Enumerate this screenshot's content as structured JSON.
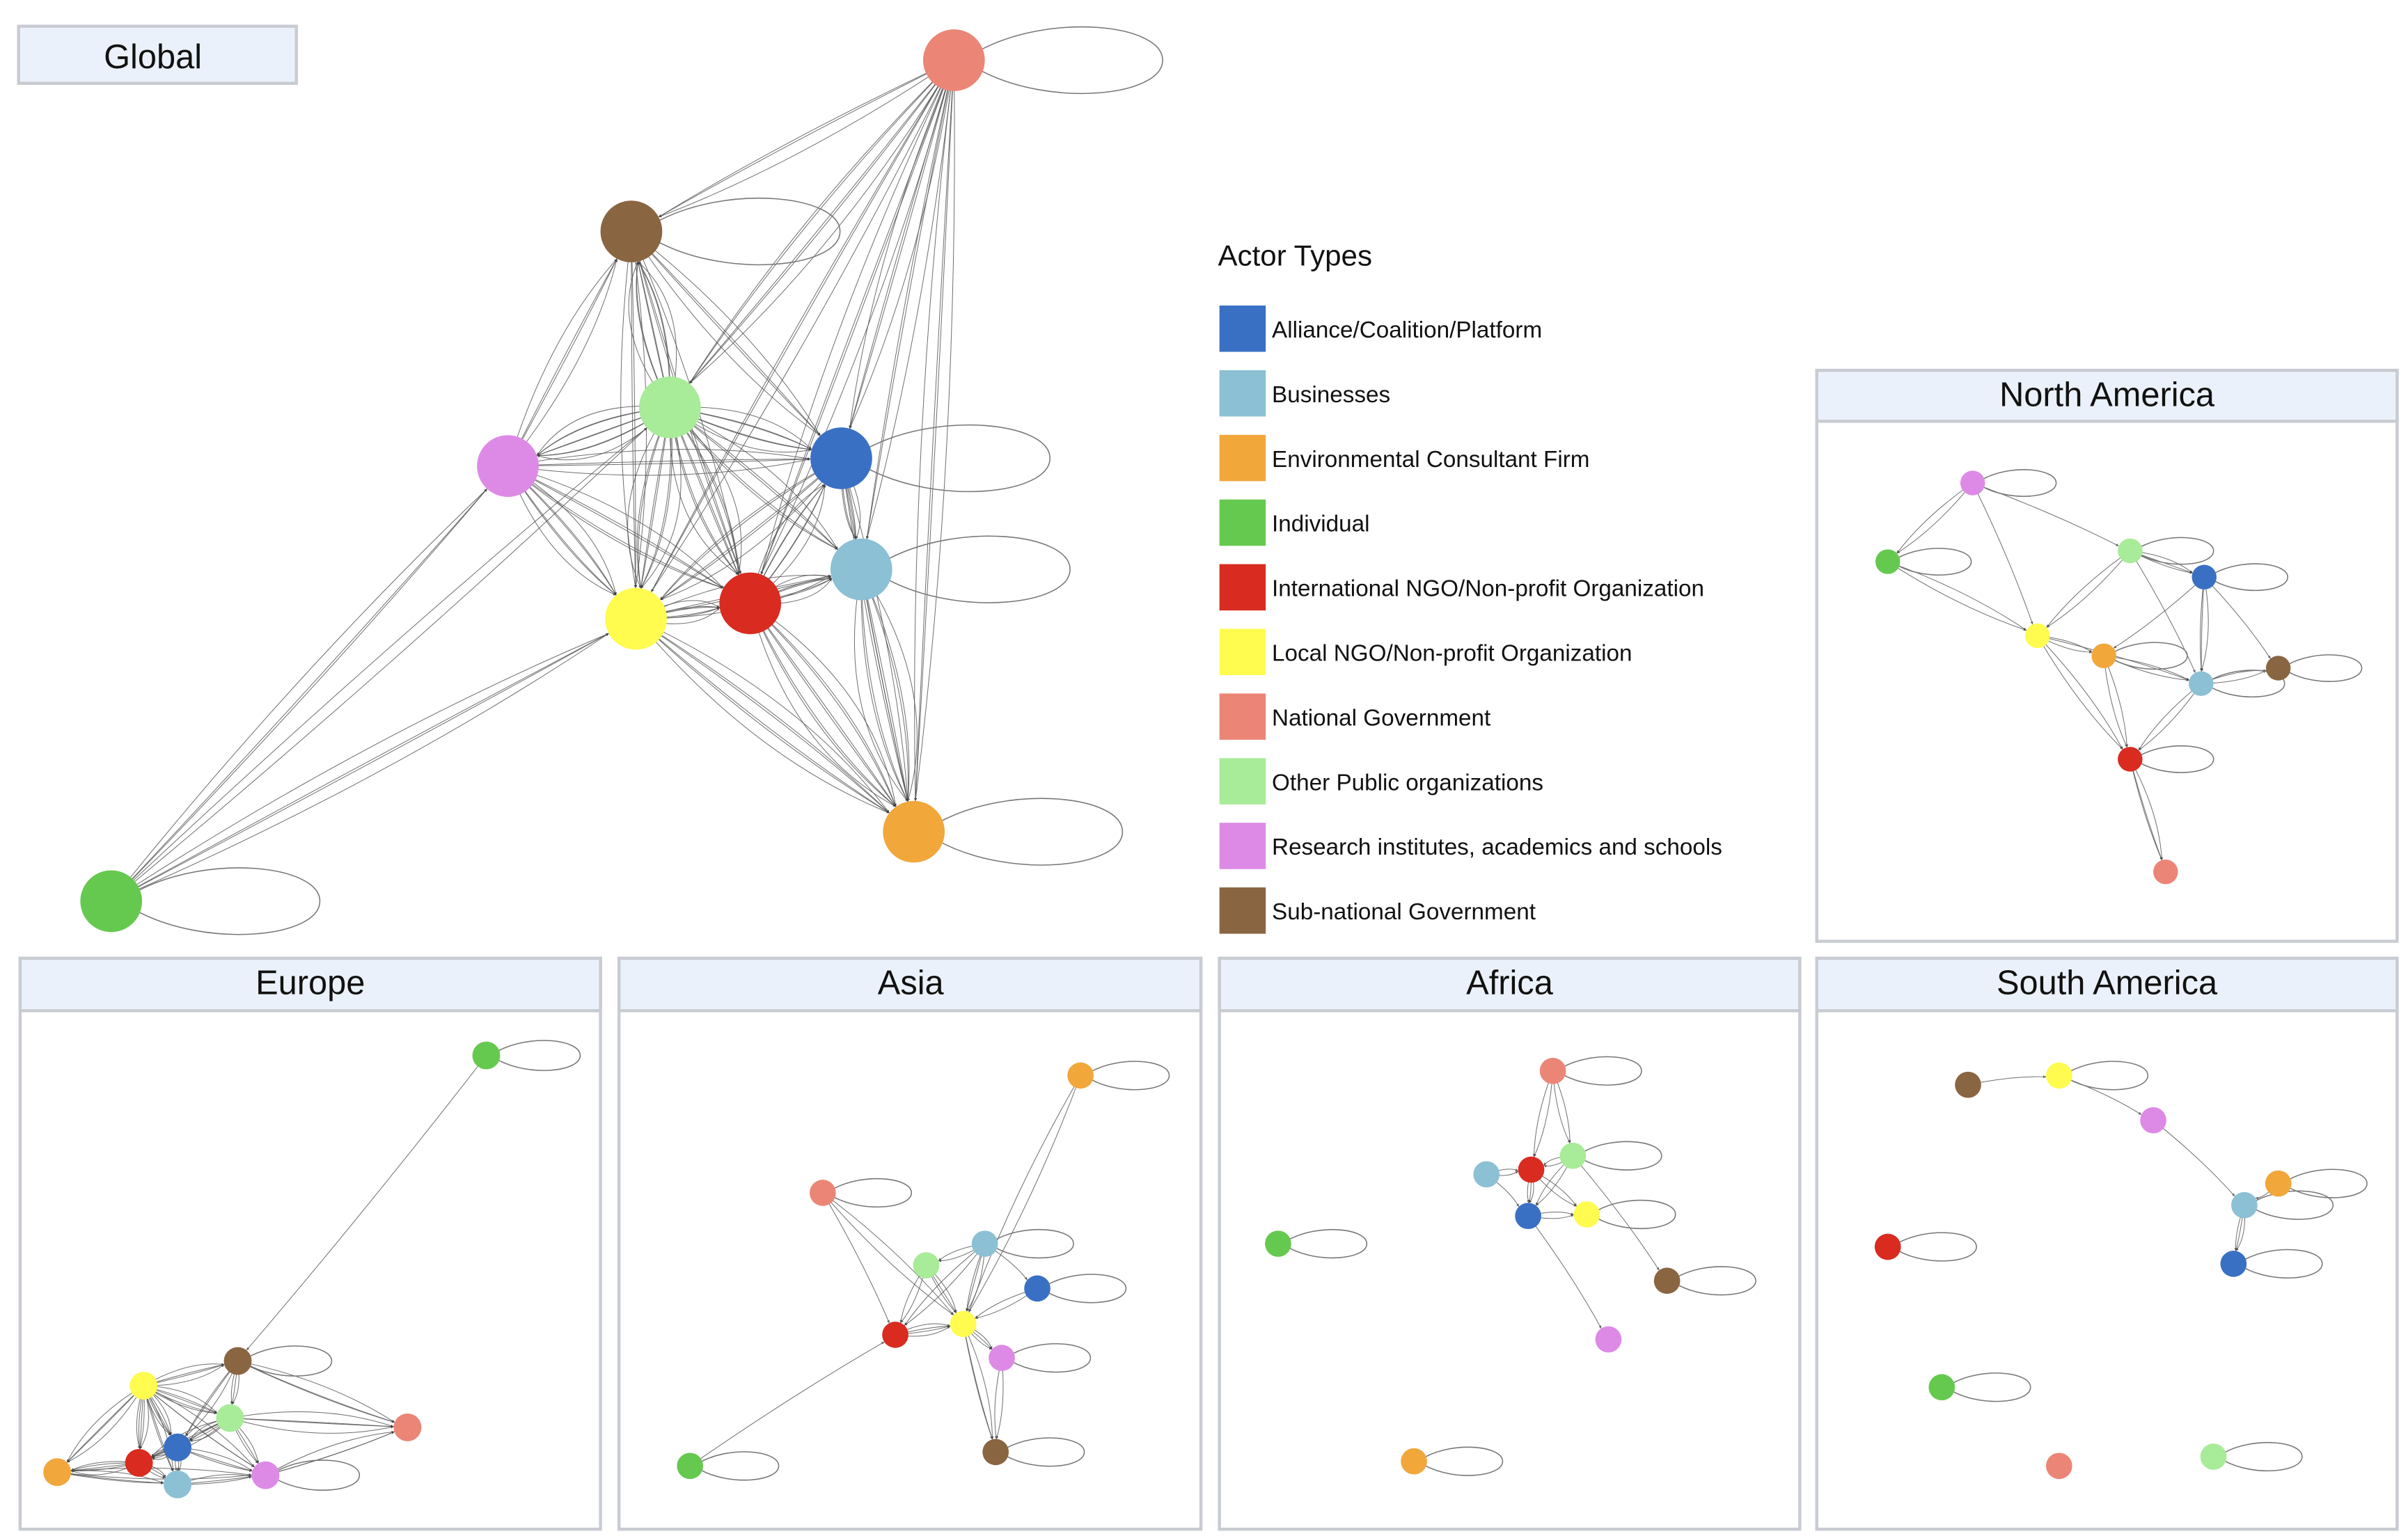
{
  "legend": {
    "title": "Actor Types",
    "items": [
      {
        "key": "alliance",
        "label": "Alliance/Coalition/Platform",
        "color": "#3a70c4"
      },
      {
        "key": "businesses",
        "label": "Businesses",
        "color": "#8cc0d4"
      },
      {
        "key": "env",
        "label": "Environmental Consultant Firm",
        "color": "#f2a73b"
      },
      {
        "key": "individual",
        "label": "Individual",
        "color": "#66c94f"
      },
      {
        "key": "intl_ngo",
        "label": "International NGO/Non-profit Organization",
        "color": "#d92b20"
      },
      {
        "key": "local_ngo",
        "label": "Local NGO/Non-profit Organization",
        "color": "#fffb4f"
      },
      {
        "key": "natgov",
        "label": "National Government",
        "color": "#eb8677"
      },
      {
        "key": "otherpub",
        "label": "Other Public organizations",
        "color": "#a8eb98"
      },
      {
        "key": "research",
        "label": "Research institutes, academics and schools",
        "color": "#dd8ae6"
      },
      {
        "key": "subnat",
        "label": "Sub-national Government",
        "color": "#8a6541"
      }
    ]
  },
  "networks": [
    {
      "id": "global",
      "title": "Global",
      "self_loops": [
        "natgov",
        "subnat",
        "alliance",
        "businesses",
        "env",
        "individual"
      ],
      "edges": [
        [
          "otherpub",
          "research",
          8
        ],
        [
          "otherpub",
          "alliance",
          6
        ],
        [
          "otherpub",
          "local_ngo",
          8
        ],
        [
          "otherpub",
          "intl_ngo",
          8
        ],
        [
          "otherpub",
          "subnat",
          8
        ],
        [
          "otherpub",
          "businesses",
          5
        ],
        [
          "research",
          "local_ngo",
          6
        ],
        [
          "research",
          "intl_ngo",
          5
        ],
        [
          "research",
          "subnat",
          4
        ],
        [
          "local_ngo",
          "intl_ngo",
          6
        ],
        [
          "intl_ngo",
          "alliance",
          6
        ],
        [
          "intl_ngo",
          "businesses",
          6
        ],
        [
          "alliance",
          "businesses",
          5
        ],
        [
          "businesses",
          "env",
          8
        ],
        [
          "intl_ngo",
          "env",
          8
        ],
        [
          "local_ngo",
          "env",
          6
        ],
        [
          "alliance",
          "env",
          3
        ],
        [
          "natgov",
          "subnat",
          3
        ],
        [
          "natgov",
          "otherpub",
          5
        ],
        [
          "natgov",
          "alliance",
          4
        ],
        [
          "natgov",
          "businesses",
          3
        ],
        [
          "natgov",
          "intl_ngo",
          4
        ],
        [
          "natgov",
          "env",
          4
        ],
        [
          "natgov",
          "local_ngo",
          3
        ],
        [
          "subnat",
          "alliance",
          4
        ],
        [
          "subnat",
          "local_ngo",
          4
        ],
        [
          "subnat",
          "intl_ngo",
          3
        ],
        [
          "individual",
          "research",
          3
        ],
        [
          "individual",
          "local_ngo",
          4
        ],
        [
          "individual",
          "otherpub",
          2
        ],
        [
          "alliance",
          "local_ngo",
          5
        ],
        [
          "research",
          "alliance",
          4
        ],
        [
          "local_ngo",
          "businesses",
          4
        ]
      ]
    },
    {
      "id": "north-america",
      "title": "North America",
      "self_loops": [
        "research",
        "individual",
        "otherpub",
        "alliance",
        "env",
        "businesses",
        "subnat",
        "intl_ngo"
      ],
      "edges": [
        [
          "research",
          "individual",
          2
        ],
        [
          "research",
          "local_ngo",
          1
        ],
        [
          "research",
          "otherpub",
          1
        ],
        [
          "individual",
          "local_ngo",
          2
        ],
        [
          "otherpub",
          "local_ngo",
          2
        ],
        [
          "otherpub",
          "alliance",
          3
        ],
        [
          "otherpub",
          "businesses",
          1
        ],
        [
          "alliance",
          "businesses",
          3
        ],
        [
          "alliance",
          "env",
          1
        ],
        [
          "local_ngo",
          "env",
          2
        ],
        [
          "local_ngo",
          "intl_ngo",
          2
        ],
        [
          "env",
          "businesses",
          2
        ],
        [
          "businesses",
          "subnat",
          2
        ],
        [
          "alliance",
          "subnat",
          1
        ],
        [
          "businesses",
          "intl_ngo",
          2
        ],
        [
          "env",
          "intl_ngo",
          2
        ],
        [
          "intl_ngo",
          "natgov",
          3
        ],
        [
          "local_ngo",
          "businesses",
          1
        ]
      ]
    },
    {
      "id": "europe",
      "title": "Europe",
      "self_loops": [
        "individual",
        "subnat",
        "research"
      ],
      "edges": [
        [
          "local_ngo",
          "subnat",
          4
        ],
        [
          "local_ngo",
          "otherpub",
          5
        ],
        [
          "local_ngo",
          "alliance",
          5
        ],
        [
          "local_ngo",
          "intl_ngo",
          5
        ],
        [
          "local_ngo",
          "env",
          4
        ],
        [
          "local_ngo",
          "businesses",
          3
        ],
        [
          "local_ngo",
          "research",
          3
        ],
        [
          "subnat",
          "otherpub",
          3
        ],
        [
          "subnat",
          "alliance",
          3
        ],
        [
          "subnat",
          "natgov",
          3
        ],
        [
          "otherpub",
          "alliance",
          4
        ],
        [
          "otherpub",
          "intl_ngo",
          4
        ],
        [
          "otherpub",
          "natgov",
          4
        ],
        [
          "otherpub",
          "research",
          3
        ],
        [
          "alliance",
          "intl_ngo",
          5
        ],
        [
          "alliance",
          "businesses",
          3
        ],
        [
          "alliance",
          "research",
          3
        ],
        [
          "intl_ngo",
          "env",
          5
        ],
        [
          "intl_ngo",
          "businesses",
          3
        ],
        [
          "env",
          "businesses",
          3
        ],
        [
          "businesses",
          "research",
          3
        ],
        [
          "research",
          "natgov",
          3
        ],
        [
          "env",
          "research",
          2
        ],
        [
          "individual",
          "subnat",
          1
        ]
      ]
    },
    {
      "id": "asia",
      "title": "Asia",
      "self_loops": [
        "env",
        "natgov",
        "businesses",
        "alliance",
        "research",
        "subnat",
        "individual"
      ],
      "edges": [
        [
          "env",
          "local_ngo",
          2
        ],
        [
          "natgov",
          "local_ngo",
          2
        ],
        [
          "natgov",
          "intl_ngo",
          1
        ],
        [
          "businesses",
          "local_ngo",
          3
        ],
        [
          "businesses",
          "intl_ngo",
          2
        ],
        [
          "otherpub",
          "local_ngo",
          3
        ],
        [
          "otherpub",
          "intl_ngo",
          2
        ],
        [
          "alliance",
          "local_ngo",
          2
        ],
        [
          "intl_ngo",
          "local_ngo",
          4
        ],
        [
          "local_ngo",
          "research",
          3
        ],
        [
          "local_ngo",
          "subnat",
          3
        ],
        [
          "research",
          "subnat",
          2
        ],
        [
          "individual",
          "intl_ngo",
          1
        ],
        [
          "businesses",
          "alliance",
          1
        ],
        [
          "businesses",
          "otherpub",
          2
        ]
      ]
    },
    {
      "id": "africa",
      "title": "Africa",
      "self_loops": [
        "natgov",
        "otherpub",
        "local_ngo",
        "individual",
        "subnat",
        "env"
      ],
      "edges": [
        [
          "natgov",
          "otherpub",
          2
        ],
        [
          "natgov",
          "intl_ngo",
          2
        ],
        [
          "otherpub",
          "intl_ngo",
          2
        ],
        [
          "otherpub",
          "alliance",
          2
        ],
        [
          "businesses",
          "intl_ngo",
          2
        ],
        [
          "intl_ngo",
          "alliance",
          3
        ],
        [
          "alliance",
          "local_ngo",
          2
        ],
        [
          "intl_ngo",
          "local_ngo",
          2
        ],
        [
          "otherpub",
          "subnat",
          1
        ],
        [
          "alliance",
          "research",
          1
        ],
        [
          "businesses",
          "alliance",
          1
        ]
      ]
    },
    {
      "id": "south-america",
      "title": "South America",
      "self_loops": [
        "local_ngo",
        "env",
        "businesses",
        "alliance",
        "intl_ngo",
        "individual",
        "otherpub"
      ],
      "edges": [
        [
          "subnat",
          "local_ngo",
          1
        ],
        [
          "local_ngo",
          "research",
          1
        ],
        [
          "research",
          "businesses",
          1
        ],
        [
          "businesses",
          "alliance",
          3
        ],
        [
          "env",
          "businesses",
          1
        ]
      ]
    }
  ]
}
